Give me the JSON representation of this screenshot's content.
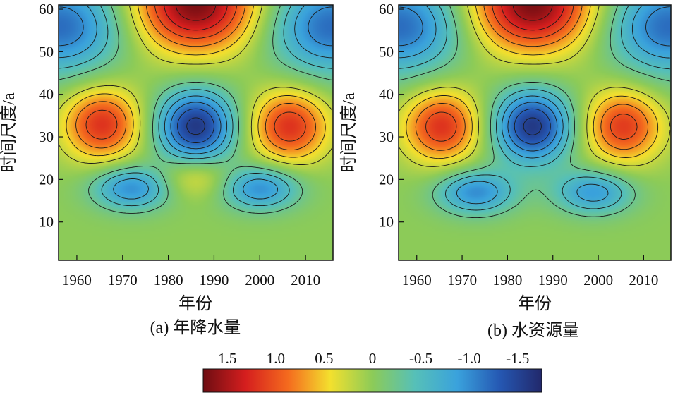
{
  "chart_data": [
    {
      "type": "heatmap",
      "panel": "a",
      "caption": "(a) 年降水量",
      "xlabel": "年份",
      "ylabel": "时间尺度/a",
      "xlim": [
        1956,
        2016
      ],
      "ylim": [
        1,
        61
      ],
      "x_ticks": [
        1960,
        1970,
        1980,
        1990,
        2000,
        2010
      ],
      "y_ticks": [
        10,
        20,
        30,
        40,
        50,
        60
      ],
      "features": [
        {
          "kind": "max",
          "x": 1965.5,
          "y": 33,
          "value": 1.2
        },
        {
          "kind": "min",
          "x": 1986,
          "y": 32.5,
          "value": -1.6
        },
        {
          "kind": "max",
          "x": 2006.5,
          "y": 32.5,
          "value": 1.2
        },
        {
          "kind": "max",
          "x": 1986,
          "y": 61,
          "value": 1.7
        },
        {
          "kind": "min",
          "x": 1956.5,
          "y": 56,
          "value": -1.2
        },
        {
          "kind": "min",
          "x": 2015.5,
          "y": 56,
          "value": -1.2
        },
        {
          "kind": "min",
          "x": 1972,
          "y": 18,
          "value": -1.0
        },
        {
          "kind": "min",
          "x": 2000,
          "y": 18,
          "value": -1.0
        },
        {
          "kind": "max",
          "x": 1986,
          "y": 20.5,
          "value": 0.5
        }
      ]
    },
    {
      "type": "heatmap",
      "panel": "b",
      "caption": "(b) 水资源量",
      "xlabel": "年份",
      "ylabel": "时间尺度/a",
      "xlim": [
        1956,
        2016
      ],
      "ylim": [
        1,
        61
      ],
      "x_ticks": [
        1960,
        1970,
        1980,
        1990,
        2000,
        2010
      ],
      "y_ticks": [
        10,
        20,
        30,
        40,
        50,
        60
      ],
      "features": [
        {
          "kind": "max",
          "x": 1965.5,
          "y": 32.5,
          "value": 1.2
        },
        {
          "kind": "min",
          "x": 1985.5,
          "y": 32.5,
          "value": -1.6
        },
        {
          "kind": "max",
          "x": 2005.5,
          "y": 32.5,
          "value": 1.15
        },
        {
          "kind": "max",
          "x": 1985.5,
          "y": 61,
          "value": 1.7
        },
        {
          "kind": "min",
          "x": 1956.5,
          "y": 56,
          "value": -1.2
        },
        {
          "kind": "min",
          "x": 2015.5,
          "y": 56,
          "value": -1.2
        },
        {
          "kind": "min",
          "x": 1973,
          "y": 17,
          "value": -1.0
        },
        {
          "kind": "min",
          "x": 1999,
          "y": 17,
          "value": -0.9
        }
      ]
    }
  ],
  "colorbar": {
    "tick_labels": [
      "1.5",
      "1.0",
      "0.5",
      "0",
      "-0.5",
      "-1.0",
      "-1.5"
    ],
    "range": [
      1.75,
      -1.75
    ],
    "colors": [
      "#6e0d12",
      "#d51e1e",
      "#f46a1e",
      "#f3e02e",
      "#8ccb58",
      "#56c0b8",
      "#3aa2dc",
      "#2558b3",
      "#22286b"
    ]
  }
}
